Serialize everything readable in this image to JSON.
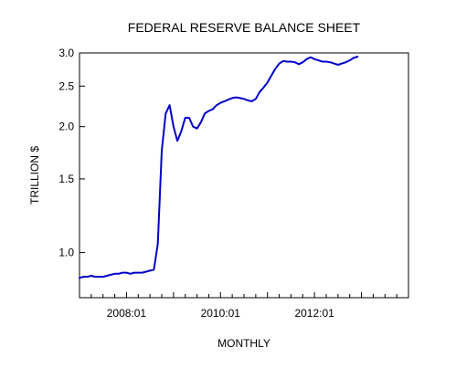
{
  "chart_data": {
    "type": "line",
    "title": "FEDERAL RESERVE BALANCE SHEET",
    "xlabel": "MONTHLY",
    "ylabel": "TRILLION $",
    "yscale": "log",
    "ylim": [
      0.78,
      3.0
    ],
    "yticks": [
      1.0,
      1.5,
      2.0,
      2.5,
      3.0
    ],
    "ytick_labels": [
      "1.0",
      "1.5",
      "2.0",
      "2.5",
      "3.0"
    ],
    "xlim": [
      "2007-01",
      "2013-12"
    ],
    "xtick_labels": [
      "2008:01",
      "2010:01",
      "2012:01"
    ],
    "grid": false,
    "series_color": "#0000c8",
    "series": [
      {
        "x": [
          "2007-01",
          "2007-02",
          "2007-03",
          "2007-04",
          "2007-05",
          "2007-06",
          "2007-07",
          "2007-08",
          "2007-09",
          "2007-10",
          "2007-11",
          "2007-12",
          "2008-01",
          "2008-02",
          "2008-03",
          "2008-04",
          "2008-05",
          "2008-06",
          "2008-07",
          "2008-08",
          "2008-09",
          "2008-10",
          "2008-11",
          "2008-12",
          "2009-01",
          "2009-02",
          "2009-03",
          "2009-04",
          "2009-05",
          "2009-06",
          "2009-07",
          "2009-08",
          "2009-09",
          "2009-10",
          "2009-11",
          "2009-12",
          "2010-01",
          "2010-02",
          "2010-03",
          "2010-04",
          "2010-05",
          "2010-06",
          "2010-07",
          "2010-08",
          "2010-09",
          "2010-10",
          "2010-11",
          "2010-12",
          "2011-01",
          "2011-02",
          "2011-03",
          "2011-04",
          "2011-05",
          "2011-06",
          "2011-07",
          "2011-08",
          "2011-09",
          "2011-10",
          "2011-11",
          "2011-12",
          "2012-01",
          "2012-02",
          "2012-03",
          "2012-04",
          "2012-05",
          "2012-06",
          "2012-07",
          "2012-08",
          "2012-09",
          "2012-10",
          "2012-11",
          "2012-12"
        ],
        "values": [
          0.87,
          0.875,
          0.875,
          0.88,
          0.875,
          0.875,
          0.875,
          0.88,
          0.885,
          0.89,
          0.89,
          0.895,
          0.895,
          0.89,
          0.895,
          0.895,
          0.895,
          0.9,
          0.905,
          0.91,
          1.05,
          1.75,
          2.15,
          2.25,
          2.0,
          1.85,
          1.95,
          2.1,
          2.1,
          2.0,
          1.98,
          2.05,
          2.15,
          2.18,
          2.2,
          2.25,
          2.28,
          2.3,
          2.32,
          2.34,
          2.35,
          2.34,
          2.33,
          2.31,
          2.3,
          2.33,
          2.42,
          2.48,
          2.55,
          2.65,
          2.75,
          2.83,
          2.87,
          2.86,
          2.86,
          2.85,
          2.82,
          2.85,
          2.9,
          2.93,
          2.9,
          2.88,
          2.86,
          2.86,
          2.85,
          2.83,
          2.81,
          2.83,
          2.85,
          2.88,
          2.92,
          2.94
        ]
      }
    ]
  }
}
